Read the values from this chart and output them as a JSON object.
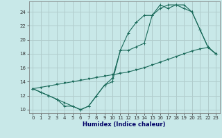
{
  "title": "",
  "xlabel": "Humidex (Indice chaleur)",
  "bg_color": "#c8e8e8",
  "grid_color": "#b0cccc",
  "line_color": "#1a6a5a",
  "xlim": [
    -0.5,
    23.5
  ],
  "ylim": [
    9.5,
    25.5
  ],
  "xticks": [
    0,
    1,
    2,
    3,
    4,
    5,
    6,
    7,
    8,
    9,
    10,
    11,
    12,
    13,
    14,
    15,
    16,
    17,
    18,
    19,
    20,
    21,
    22,
    23
  ],
  "yticks": [
    10,
    12,
    14,
    16,
    18,
    20,
    22,
    24
  ],
  "line1_x": [
    0,
    1,
    2,
    3,
    4,
    5,
    6,
    7,
    8,
    9,
    10,
    11,
    12,
    13,
    14,
    15,
    16,
    17,
    18,
    19,
    20,
    21,
    22,
    23
  ],
  "line1_y": [
    13,
    12.5,
    12,
    11.5,
    10.5,
    10.5,
    10,
    10.5,
    12,
    13.5,
    14,
    18.5,
    18.5,
    19,
    19.5,
    23.5,
    25,
    24.5,
    25,
    25,
    24,
    21.5,
    19,
    18
  ],
  "line2_x": [
    0,
    1,
    2,
    3,
    4,
    5,
    6,
    7,
    8,
    9,
    10,
    11,
    12,
    13,
    14,
    15,
    16,
    17,
    18,
    19,
    20,
    21,
    22,
    23
  ],
  "line2_y": [
    13,
    12.5,
    12,
    11.5,
    11,
    10.5,
    10,
    10.5,
    12,
    13.5,
    14.5,
    18.5,
    21,
    22.5,
    23.5,
    23.5,
    24.5,
    25,
    25,
    24.5,
    24,
    21.5,
    19,
    18
  ],
  "line3_x": [
    0,
    1,
    2,
    3,
    4,
    5,
    6,
    7,
    8,
    9,
    10,
    11,
    12,
    13,
    14,
    15,
    16,
    17,
    18,
    19,
    20,
    21,
    22,
    23
  ],
  "line3_y": [
    13,
    13.2,
    13.4,
    13.6,
    13.8,
    14.0,
    14.2,
    14.4,
    14.6,
    14.8,
    15.0,
    15.2,
    15.4,
    15.7,
    16.0,
    16.4,
    16.8,
    17.2,
    17.6,
    18.0,
    18.4,
    18.7,
    18.9,
    18.0
  ]
}
